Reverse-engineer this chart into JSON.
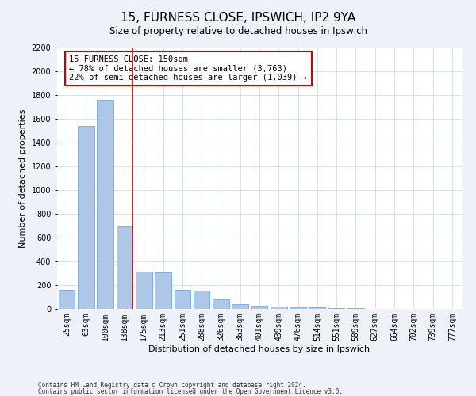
{
  "title": "15, FURNESS CLOSE, IPSWICH, IP2 9YA",
  "subtitle": "Size of property relative to detached houses in Ipswich",
  "xlabel": "Distribution of detached houses by size in Ipswich",
  "ylabel": "Number of detached properties",
  "categories": [
    "25sqm",
    "63sqm",
    "100sqm",
    "138sqm",
    "175sqm",
    "213sqm",
    "251sqm",
    "288sqm",
    "326sqm",
    "363sqm",
    "401sqm",
    "439sqm",
    "476sqm",
    "514sqm",
    "551sqm",
    "589sqm",
    "627sqm",
    "664sqm",
    "702sqm",
    "739sqm",
    "777sqm"
  ],
  "values": [
    160,
    1540,
    1760,
    700,
    315,
    305,
    160,
    155,
    80,
    40,
    25,
    20,
    15,
    12,
    8,
    5,
    3,
    2,
    2,
    1,
    1
  ],
  "bar_color": "#aec6e8",
  "bar_edge_color": "#5a9fd4",
  "vline_color": "#cc0000",
  "vline_pos": 3.43,
  "annotation_text": "15 FURNESS CLOSE: 150sqm\n← 78% of detached houses are smaller (3,763)\n22% of semi-detached houses are larger (1,039) →",
  "annotation_box_color": "#cc0000",
  "ylim": [
    0,
    2200
  ],
  "yticks": [
    0,
    200,
    400,
    600,
    800,
    1000,
    1200,
    1400,
    1600,
    1800,
    2000,
    2200
  ],
  "footnote1": "Contains HM Land Registry data © Crown copyright and database right 2024.",
  "footnote2": "Contains public sector information licensed under the Open Government Licence v3.0.",
  "bg_color": "#eef2f8",
  "plot_bg_color": "#ffffff",
  "title_fontsize": 11,
  "label_fontsize": 8,
  "tick_fontsize": 7,
  "annotation_fontsize": 7.5,
  "footnote_fontsize": 5.5
}
